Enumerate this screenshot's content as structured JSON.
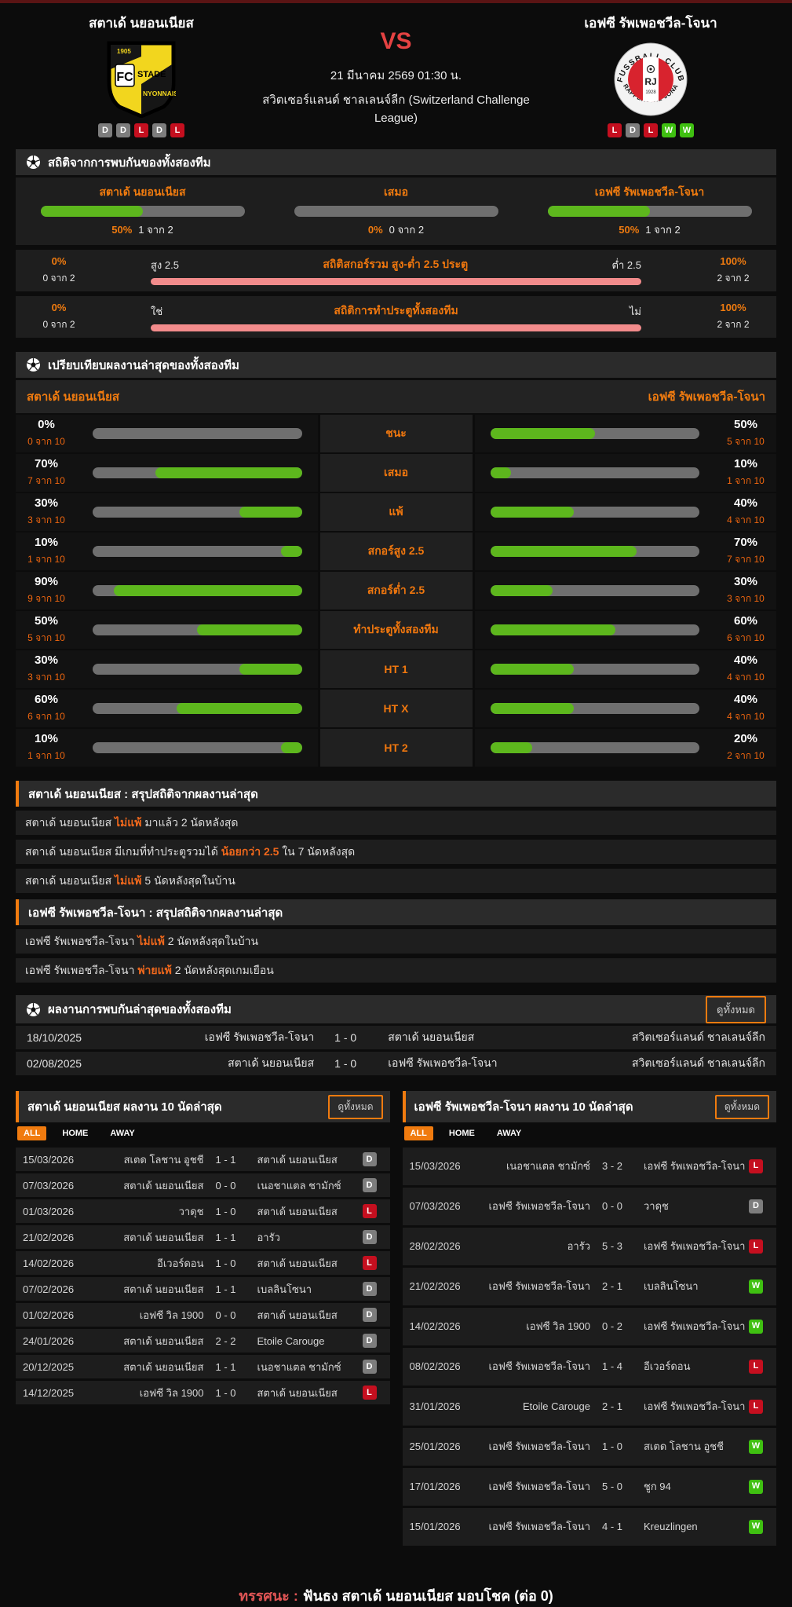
{
  "header": {
    "home": {
      "name": "สตาเด้ นยอนเนียส",
      "form": [
        "D",
        "D",
        "L",
        "D",
        "L"
      ],
      "logo_text": {
        "year": "1905",
        "fc": "FC",
        "line1": "STADE",
        "line2": "NYONNAIS"
      }
    },
    "away": {
      "name": "เอฟซี รัพเพอชวีล-โจนา",
      "form": [
        "L",
        "D",
        "L",
        "W",
        "W"
      ],
      "logo_text": {
        "top": "FUSSBALL CLUB",
        "bottom": "RAPPERSWIL-JONA",
        "center": "RJ",
        "year": "1928"
      }
    },
    "vs": "VS",
    "datetime": "21 มีนาคม 2569 01:30 น.",
    "league": "สวิตเซอร์แลนด์ ชาลเลนจ์ลีก (Switzerland Challenge League)"
  },
  "h2h_stats": {
    "title": "สถิติจากการพบกันของทั้งสองทีม",
    "bars": [
      {
        "label": "สตาเด้ นยอนเนียส",
        "pct": "50%",
        "count": "1 จาก 2",
        "value": 50
      },
      {
        "label": "เสมอ",
        "pct": "0%",
        "count": "0 จาก 2",
        "value": 0
      },
      {
        "label": "เอฟซี รัพเพอชวีล-โจนา",
        "pct": "50%",
        "count": "1 จาก 2",
        "value": 50
      }
    ],
    "ou": {
      "title": "สถิติสกอร์รวม สูง-ต่ำ 2.5 ประตู",
      "left_label": "สูง 2.5",
      "right_label": "ต่ำ 2.5",
      "left_pct": "0%",
      "left_count": "0 จาก 2",
      "right_pct": "100%",
      "right_count": "2 จาก 2"
    },
    "btts": {
      "title": "สถิติการทำประตูทั้งสองทีม",
      "left_label": "ใช่",
      "right_label": "ไม่",
      "left_pct": "0%",
      "left_count": "0 จาก 2",
      "right_pct": "100%",
      "right_count": "2 จาก 2"
    }
  },
  "compare": {
    "title": "เปรียบเทียบผลงานล่าสุดของทั้งสองทีม",
    "home_name": "สตาเด้ นยอนเนียส",
    "away_name": "เอฟซี รัพเพอชวีล-โจนา",
    "rows": [
      {
        "label": "ชนะ",
        "home": {
          "pct": "0%",
          "value": 0,
          "count": "0 จาก 10"
        },
        "away": {
          "pct": "50%",
          "value": 50,
          "count": "5 จาก 10"
        }
      },
      {
        "label": "เสมอ",
        "home": {
          "pct": "70%",
          "value": 70,
          "count": "7 จาก 10"
        },
        "away": {
          "pct": "10%",
          "value": 10,
          "count": "1 จาก 10"
        }
      },
      {
        "label": "แพ้",
        "home": {
          "pct": "30%",
          "value": 30,
          "count": "3 จาก 10"
        },
        "away": {
          "pct": "40%",
          "value": 40,
          "count": "4 จาก 10"
        }
      },
      {
        "label": "สกอร์สูง 2.5",
        "home": {
          "pct": "10%",
          "value": 10,
          "count": "1 จาก 10"
        },
        "away": {
          "pct": "70%",
          "value": 70,
          "count": "7 จาก 10"
        }
      },
      {
        "label": "สกอร์ต่ำ 2.5",
        "home": {
          "pct": "90%",
          "value": 90,
          "count": "9 จาก 10"
        },
        "away": {
          "pct": "30%",
          "value": 30,
          "count": "3 จาก 10"
        }
      },
      {
        "label": "ทำประตูทั้งสองทีม",
        "home": {
          "pct": "50%",
          "value": 50,
          "count": "5 จาก 10"
        },
        "away": {
          "pct": "60%",
          "value": 60,
          "count": "6 จาก 10"
        }
      },
      {
        "label": "HT 1",
        "home": {
          "pct": "30%",
          "value": 30,
          "count": "3 จาก 10"
        },
        "away": {
          "pct": "40%",
          "value": 40,
          "count": "4 จาก 10"
        }
      },
      {
        "label": "HT X",
        "home": {
          "pct": "60%",
          "value": 60,
          "count": "6 จาก 10"
        },
        "away": {
          "pct": "40%",
          "value": 40,
          "count": "4 จาก 10"
        }
      },
      {
        "label": "HT 2",
        "home": {
          "pct": "10%",
          "value": 10,
          "count": "1 จาก 10"
        },
        "away": {
          "pct": "20%",
          "value": 20,
          "count": "2 จาก 10"
        }
      }
    ]
  },
  "home_summary": {
    "title": "สตาเด้ นยอนเนียส : สรุปสถิติจากผลงานล่าสุด",
    "rows": [
      {
        "pre": "สตาเด้ นยอนเนียส ",
        "hl": "ไม่แพ้",
        "post": " มาแล้ว 2 นัดหลังสุด"
      },
      {
        "pre": "สตาเด้ นยอนเนียส มีเกมที่ทำประตูรวมได้ ",
        "hl": "น้อยกว่า 2.5",
        "post": " ใน 7 นัดหลังสุด"
      },
      {
        "pre": "สตาเด้ นยอนเนียส ",
        "hl": "ไม่แพ้",
        "post": " 5 นัดหลังสุดในบ้าน"
      }
    ]
  },
  "away_summary": {
    "title": "เอฟซี รัพเพอชวีล-โจนา : สรุปสถิติจากผลงานล่าสุด",
    "rows": [
      {
        "pre": "เอฟซี รัพเพอชวีล-โจนา ",
        "hl": "ไม่แพ้",
        "post": " 2 นัดหลังสุดในบ้าน"
      },
      {
        "pre": "เอฟซี รัพเพอชวีล-โจนา ",
        "hl": "พ่ายแพ้",
        "post": " 2 นัดหลังสุดเกมเยือน"
      }
    ]
  },
  "h2h_matches": {
    "title": "ผลงานการพบกันล่าสุดของทั้งสองทีม",
    "view_all": "ดูทั้งหมด",
    "rows": [
      {
        "date": "18/10/2025",
        "home": "เอฟซี รัพเพอชวีล-โจนา",
        "score": "1 - 0",
        "away": "สตาเด้ นยอนเนียส",
        "league": "สวิตเซอร์แลนด์ ชาลเลนจ์ลีก"
      },
      {
        "date": "02/08/2025",
        "home": "สตาเด้ นยอนเนียส",
        "score": "1 - 0",
        "away": "เอฟซี รัพเพอชวีล-โจนา",
        "league": "สวิตเซอร์แลนด์ ชาลเลนจ์ลีก"
      }
    ]
  },
  "recent_home": {
    "title": "สตาเด้ นยอนเนียส ผลงาน 10 นัดล่าสุด",
    "view_all": "ดูทั้งหมด",
    "tabs": [
      "ALL",
      "HOME",
      "AWAY"
    ],
    "rows": [
      {
        "date": "15/03/2026",
        "home": "สเตด โลชาน อูชชี",
        "score": "1 - 1",
        "away": "สตาเด้ นยอนเนียส",
        "result": "D"
      },
      {
        "date": "07/03/2026",
        "home": "สตาเด้ นยอนเนียส",
        "score": "0 - 0",
        "away": "เนอชาแตล ชามักซ์",
        "result": "D"
      },
      {
        "date": "01/03/2026",
        "home": "วาดุช",
        "score": "1 - 0",
        "away": "สตาเด้ นยอนเนียส",
        "result": "L"
      },
      {
        "date": "21/02/2026",
        "home": "สตาเด้ นยอนเนียส",
        "score": "1 - 1",
        "away": "อารัว",
        "result": "D"
      },
      {
        "date": "14/02/2026",
        "home": "อีเวอร์ดอน",
        "score": "1 - 0",
        "away": "สตาเด้ นยอนเนียส",
        "result": "L"
      },
      {
        "date": "07/02/2026",
        "home": "สตาเด้ นยอนเนียส",
        "score": "1 - 1",
        "away": "เบลลินโซนา",
        "result": "D"
      },
      {
        "date": "01/02/2026",
        "home": "เอฟซี วิล 1900",
        "score": "0 - 0",
        "away": "สตาเด้ นยอนเนียส",
        "result": "D"
      },
      {
        "date": "24/01/2026",
        "home": "สตาเด้ นยอนเนียส",
        "score": "2 - 2",
        "away": "Etoile Carouge",
        "result": "D"
      },
      {
        "date": "20/12/2025",
        "home": "สตาเด้ นยอนเนียส",
        "score": "1 - 1",
        "away": "เนอชาแตล ชามักซ์",
        "result": "D"
      },
      {
        "date": "14/12/2025",
        "home": "เอฟซี วิล 1900",
        "score": "1 - 0",
        "away": "สตาเด้ นยอนเนียส",
        "result": "L"
      }
    ]
  },
  "recent_away": {
    "title": "เอฟซี รัพเพอชวีล-โจนา ผลงาน 10 นัดล่าสุด",
    "view_all": "ดูทั้งหมด",
    "tabs": [
      "ALL",
      "HOME",
      "AWAY"
    ],
    "rows": [
      {
        "date": "15/03/2026",
        "home": "เนอชาแตล ชามักซ์",
        "score": "3 - 2",
        "away": "เอฟซี รัพเพอชวีล-โจนา",
        "result": "L"
      },
      {
        "date": "07/03/2026",
        "home": "เอฟซี รัพเพอชวีล-โจนา",
        "score": "0 - 0",
        "away": "วาดุช",
        "result": "D"
      },
      {
        "date": "28/02/2026",
        "home": "อารัว",
        "score": "5 - 3",
        "away": "เอฟซี รัพเพอชวีล-โจนา",
        "result": "L"
      },
      {
        "date": "21/02/2026",
        "home": "เอฟซี รัพเพอชวีล-โจนา",
        "score": "2 - 1",
        "away": "เบลลินโซนา",
        "result": "W"
      },
      {
        "date": "14/02/2026",
        "home": "เอฟซี วิล 1900",
        "score": "0 - 2",
        "away": "เอฟซี รัพเพอชวีล-โจนา",
        "result": "W"
      },
      {
        "date": "08/02/2026",
        "home": "เอฟซี รัพเพอชวีล-โจนา",
        "score": "1 - 4",
        "away": "อีเวอร์ดอน",
        "result": "L"
      },
      {
        "date": "31/01/2026",
        "home": "Etoile Carouge",
        "score": "2 - 1",
        "away": "เอฟซี รัพเพอชวีล-โจนา",
        "result": "L"
      },
      {
        "date": "25/01/2026",
        "home": "เอฟซี รัพเพอชวีล-โจนา",
        "score": "1 - 0",
        "away": "สเตด โลชาน อูชชี",
        "result": "W"
      },
      {
        "date": "17/01/2026",
        "home": "เอฟซี รัพเพอชวีล-โจนา",
        "score": "5 - 0",
        "away": "ชูก 94",
        "result": "W"
      },
      {
        "date": "15/01/2026",
        "home": "เอฟซี รัพเพอชวีล-โจนา",
        "score": "4 - 1",
        "away": "Kreuzlingen",
        "result": "W"
      }
    ]
  },
  "footer": {
    "label": "ทรรศนะ :",
    "text": "ฟันธง สตาเด้ นยอนเนียส มอบโชค (ต่อ 0)"
  },
  "colors": {
    "accent": "#f07b0f",
    "green": "#5db71d",
    "pink": "#f28b8b",
    "win": "#3fc011",
    "draw": "#7d7d7d",
    "loss": "#c50f1f"
  }
}
